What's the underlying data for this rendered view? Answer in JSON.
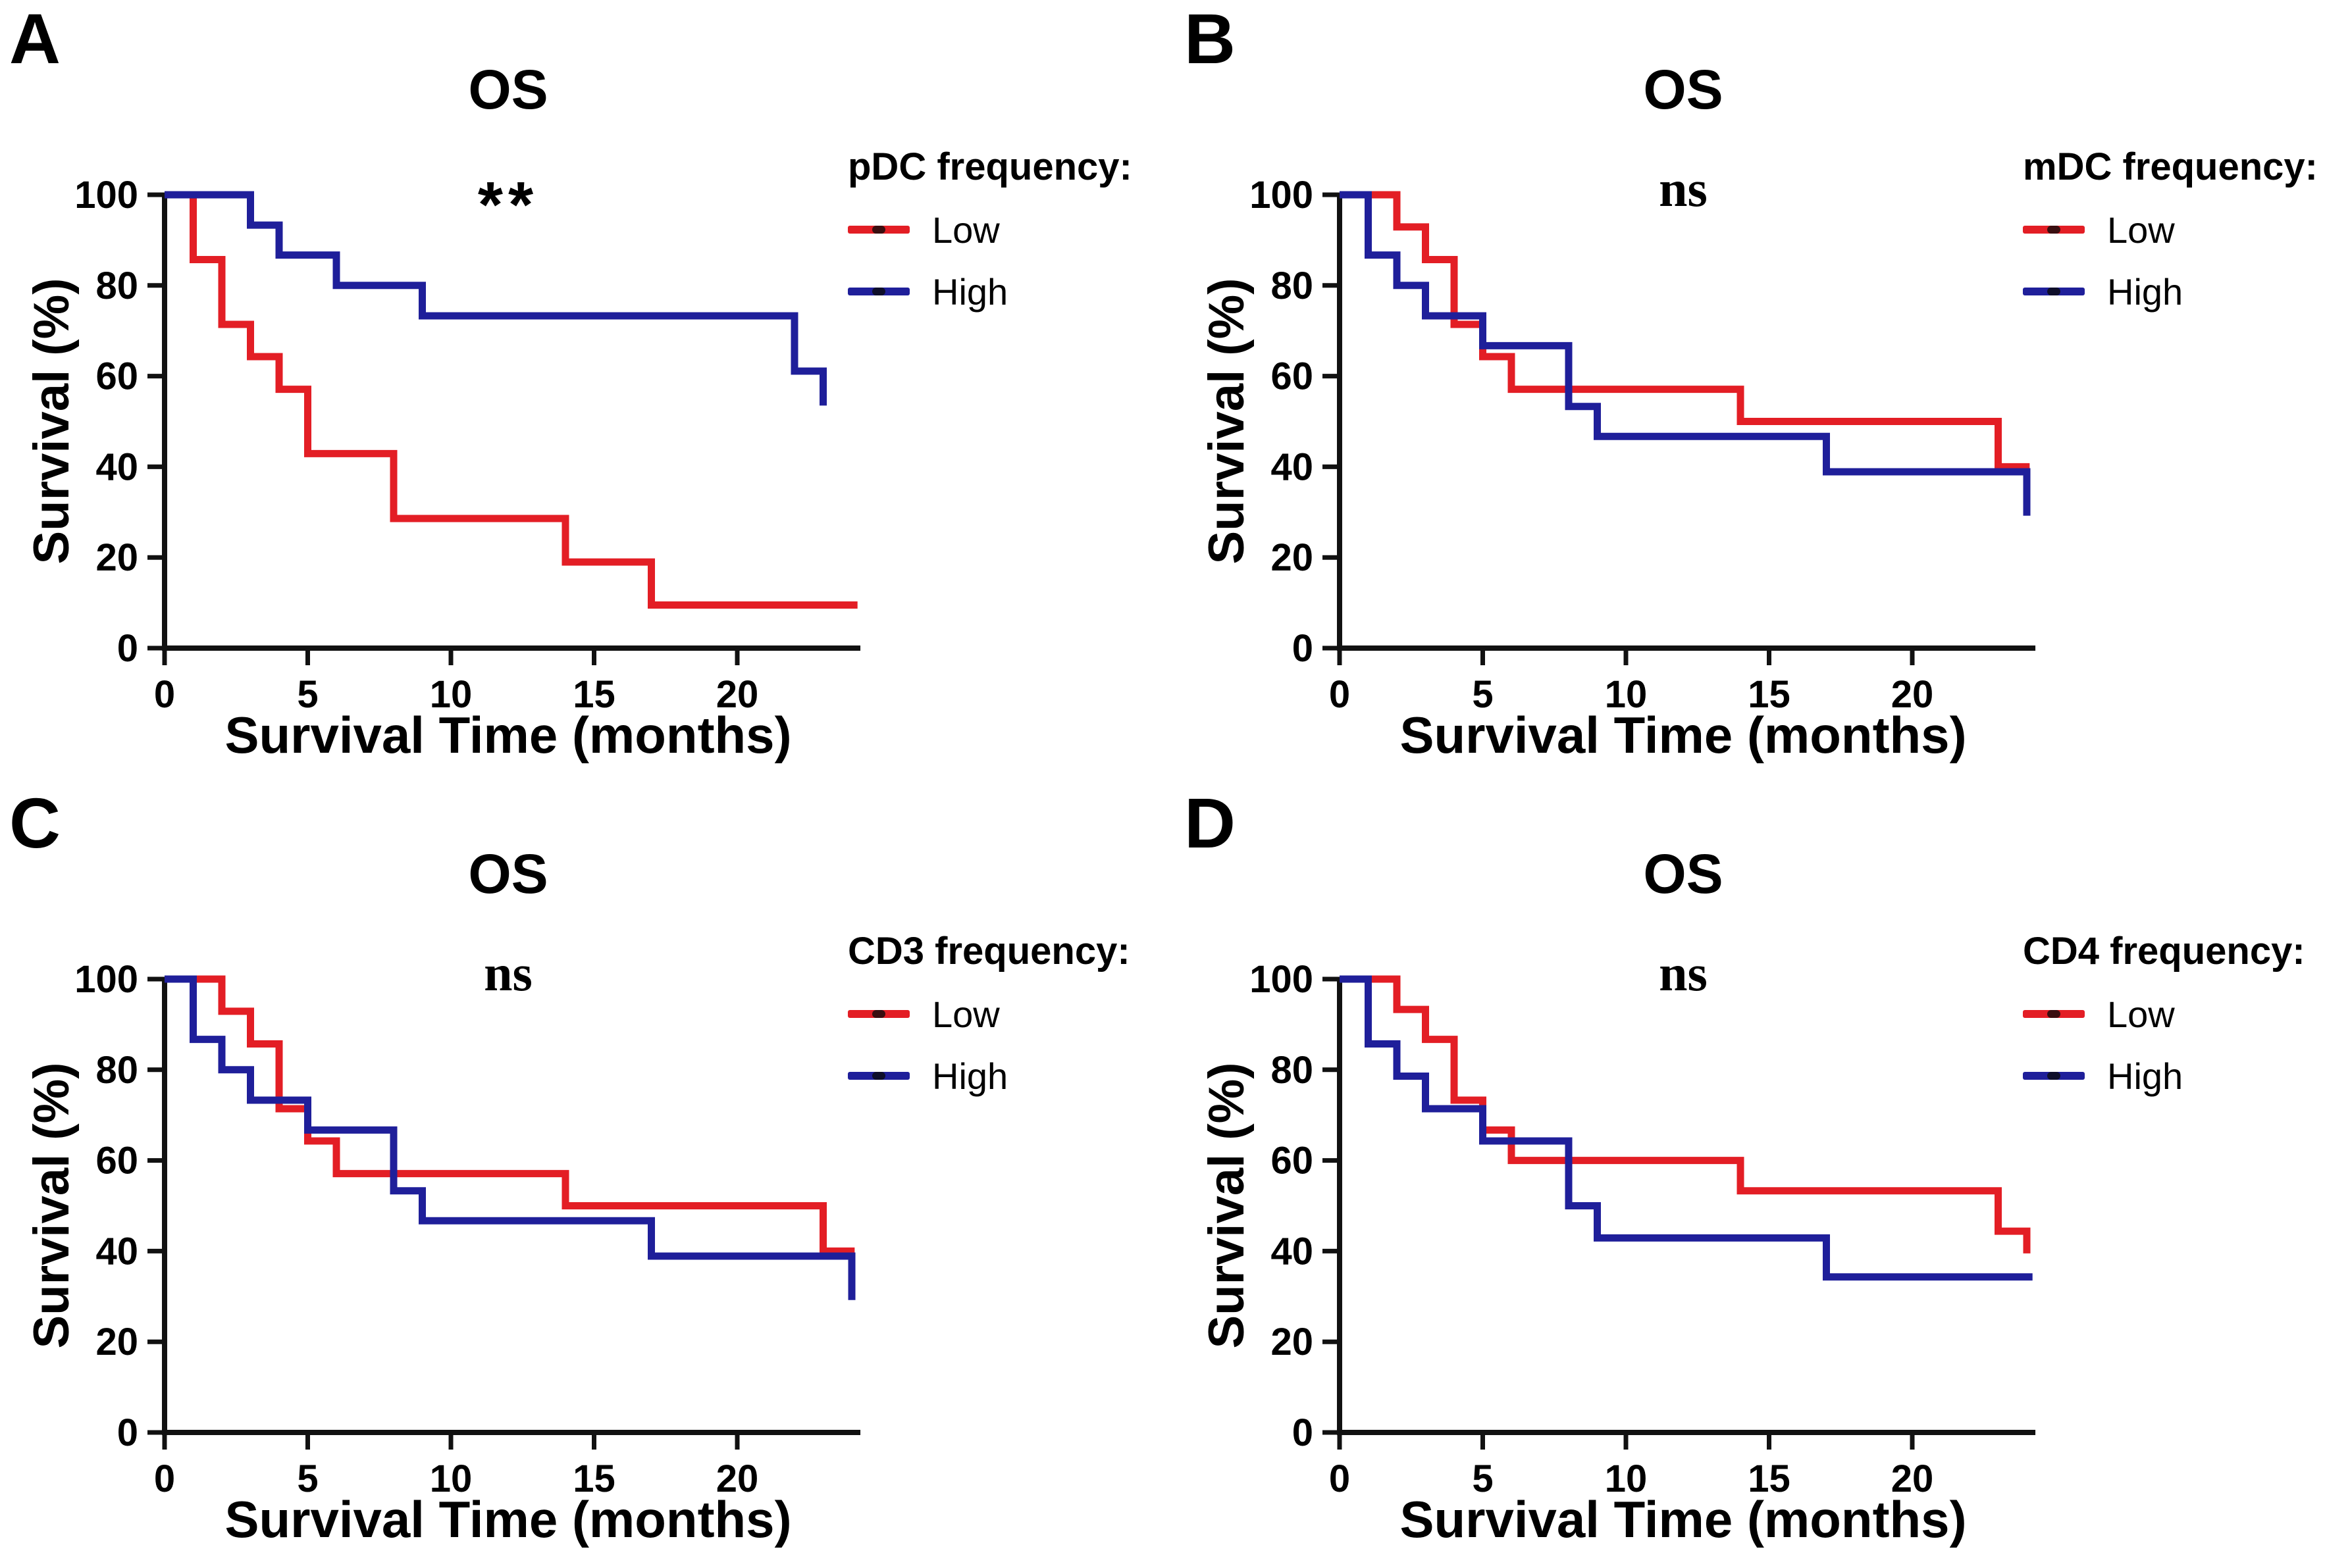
{
  "chart_data": [
    {
      "type": "line",
      "panel_letter": "A",
      "title": "OS",
      "significance": "**",
      "legend_title": "pDC frequency:",
      "xlabel": "Survival Time (months)",
      "ylabel": "Survival (%)",
      "xlim": [
        0,
        24.3
      ],
      "ylim": [
        0,
        100
      ],
      "xticks": [
        0,
        5,
        10,
        15,
        20
      ],
      "yticks": [
        0,
        20,
        40,
        60,
        80,
        100
      ],
      "grid": false,
      "legend_position": "right",
      "axis_color": "#111111",
      "series": [
        {
          "name": "Low",
          "color": "#E31E25",
          "steps": [
            [
              0,
              100
            ],
            [
              1,
              85.7
            ],
            [
              2,
              71.4
            ],
            [
              3,
              64.3
            ],
            [
              4,
              57.1
            ],
            [
              5,
              42.9
            ],
            [
              8,
              28.6
            ],
            [
              14,
              19.0
            ],
            [
              17,
              9.5
            ]
          ],
          "end": 24.2
        },
        {
          "name": "High",
          "color": "#1F1F9A",
          "steps": [
            [
              0,
              100
            ],
            [
              3,
              93.3
            ],
            [
              4,
              86.7
            ],
            [
              6,
              80
            ],
            [
              9,
              73.3
            ],
            [
              22,
              61.1
            ],
            [
              23,
              53.5
            ]
          ],
          "end": 23
        }
      ]
    },
    {
      "type": "line",
      "panel_letter": "B",
      "title": "OS",
      "significance": "ns",
      "legend_title": "mDC frequency:",
      "xlabel": "Survival Time (months)",
      "ylabel": "Survival (%)",
      "xlim": [
        0,
        24.3
      ],
      "ylim": [
        0,
        100
      ],
      "xticks": [
        0,
        5,
        10,
        15,
        20
      ],
      "yticks": [
        0,
        20,
        40,
        60,
        80,
        100
      ],
      "grid": false,
      "legend_position": "right",
      "axis_color": "#111111",
      "series": [
        {
          "name": "Low",
          "color": "#E31E25",
          "steps": [
            [
              0,
              100
            ],
            [
              2,
              92.9
            ],
            [
              3,
              85.7
            ],
            [
              4,
              71.4
            ],
            [
              5,
              64.3
            ],
            [
              6,
              57.1
            ],
            [
              14,
              50
            ],
            [
              23,
              40
            ]
          ],
          "end": 24.1
        },
        {
          "name": "High",
          "color": "#1F1F9A",
          "steps": [
            [
              0,
              100
            ],
            [
              1,
              86.7
            ],
            [
              2,
              80
            ],
            [
              3,
              73.3
            ],
            [
              5,
              66.7
            ],
            [
              8,
              53.3
            ],
            [
              9,
              46.7
            ],
            [
              17,
              38.9
            ],
            [
              24,
              29.2
            ]
          ],
          "end": 24
        }
      ]
    },
    {
      "type": "line",
      "panel_letter": "C",
      "title": "OS",
      "significance": "ns",
      "legend_title": "CD3 frequency:",
      "xlabel": "Survival Time (months)",
      "ylabel": "Survival (%)",
      "xlim": [
        0,
        24.3
      ],
      "ylim": [
        0,
        100
      ],
      "xticks": [
        0,
        5,
        10,
        15,
        20
      ],
      "yticks": [
        0,
        20,
        40,
        60,
        80,
        100
      ],
      "grid": false,
      "legend_position": "right",
      "axis_color": "#111111",
      "series": [
        {
          "name": "Low",
          "color": "#E31E25",
          "steps": [
            [
              0,
              100
            ],
            [
              2,
              92.9
            ],
            [
              3,
              85.7
            ],
            [
              4,
              71.4
            ],
            [
              5,
              64.3
            ],
            [
              6,
              57.1
            ],
            [
              14,
              50
            ],
            [
              23,
              40
            ]
          ],
          "end": 24.1
        },
        {
          "name": "High",
          "color": "#1F1F9A",
          "steps": [
            [
              0,
              100
            ],
            [
              1,
              86.7
            ],
            [
              2,
              80
            ],
            [
              3,
              73.3
            ],
            [
              5,
              66.7
            ],
            [
              8,
              53.3
            ],
            [
              9,
              46.7
            ],
            [
              17,
              38.9
            ],
            [
              24,
              29.2
            ]
          ],
          "end": 24
        }
      ]
    },
    {
      "type": "line",
      "panel_letter": "D",
      "title": "OS",
      "significance": "ns",
      "legend_title": "CD4 frequency:",
      "xlabel": "Survival Time (months)",
      "ylabel": "Survival (%)",
      "xlim": [
        0,
        24.3
      ],
      "ylim": [
        0,
        100
      ],
      "xticks": [
        0,
        5,
        10,
        15,
        20
      ],
      "yticks": [
        0,
        20,
        40,
        60,
        80,
        100
      ],
      "grid": false,
      "legend_position": "right",
      "axis_color": "#111111",
      "series": [
        {
          "name": "Low",
          "color": "#E31E25",
          "steps": [
            [
              0,
              100
            ],
            [
              2,
              93.3
            ],
            [
              3,
              86.7
            ],
            [
              4,
              73.3
            ],
            [
              5,
              66.7
            ],
            [
              6,
              60
            ],
            [
              14,
              53.3
            ],
            [
              23,
              44.4
            ],
            [
              24,
              39.5
            ]
          ],
          "end": 24
        },
        {
          "name": "High",
          "color": "#1F1F9A",
          "steps": [
            [
              0,
              100
            ],
            [
              1,
              85.7
            ],
            [
              2,
              78.6
            ],
            [
              3,
              71.4
            ],
            [
              5,
              64.3
            ],
            [
              8,
              50
            ],
            [
              9,
              42.9
            ],
            [
              17,
              34.3
            ]
          ],
          "end": 24.2
        }
      ]
    }
  ]
}
